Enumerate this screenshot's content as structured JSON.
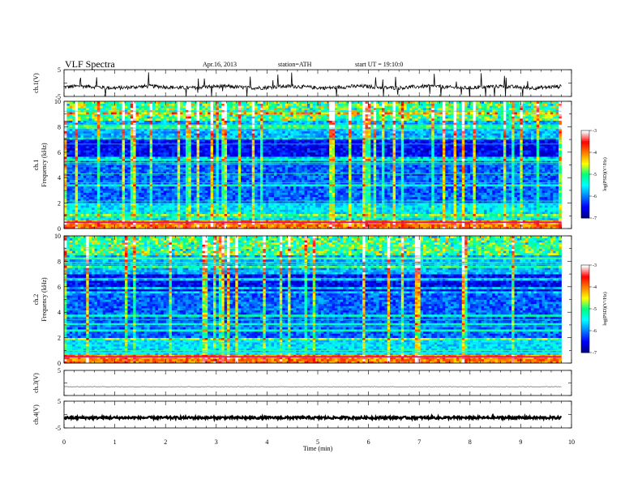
{
  "header": {
    "title": "VLF  Spectra",
    "date": "Apr.16, 2013",
    "station": "station=ATH",
    "start": "start  UT =    19:10:0"
  },
  "chart_data": [
    {
      "type": "line",
      "title": "",
      "xlabel": "",
      "ylabel": "ch.1(V)",
      "xlim": [
        0,
        10
      ],
      "ylim": [
        -5,
        5
      ],
      "y_ticks": [
        "5",
        "-5"
      ],
      "x_data_end_min": 9.8,
      "baseline_v": -1.5,
      "note_series": "noisy waveform, spikes to approx +4 and -5"
    },
    {
      "type": "heatmap",
      "title": "",
      "xlabel": "",
      "ylabel_lines": [
        "ch.1",
        "Frequency (kHz)"
      ],
      "xlim": [
        0,
        10
      ],
      "ylim": [
        0,
        10
      ],
      "y_ticks": [
        "0",
        "2",
        "4",
        "6",
        "8",
        "10"
      ],
      "colorbar": {
        "label": "log(PSD)(V²/Hz)",
        "range": [
          -7,
          -3
        ],
        "ticks": [
          "-3",
          "-4",
          "-5",
          "-6",
          "-7"
        ],
        "colors": [
          "#00008b",
          "#0000ff",
          "#0080ff",
          "#00ffff",
          "#00ff80",
          "#ffff00",
          "#ff8000",
          "#ff0000",
          "#ffffff"
        ]
      }
    },
    {
      "type": "heatmap",
      "title": "",
      "xlabel": "",
      "ylabel_lines": [
        "ch.2",
        "Frequency (kHz)"
      ],
      "xlim": [
        0,
        10
      ],
      "ylim": [
        0,
        10
      ],
      "y_ticks": [
        "0",
        "2",
        "4",
        "6",
        "8",
        "10"
      ],
      "colorbar": {
        "label": "log(PSD)(V²/Hz)",
        "range": [
          -7,
          -3
        ],
        "ticks": [
          "-3",
          "-4",
          "-5",
          "-6",
          "-7"
        ],
        "colors": [
          "#00008b",
          "#0000ff",
          "#0080ff",
          "#00ffff",
          "#00ff80",
          "#ffff00",
          "#ff8000",
          "#ff0000",
          "#ffffff"
        ]
      }
    },
    {
      "type": "line",
      "title": "",
      "xlabel": "",
      "ylabel": "ch.3(V)",
      "xlim": [
        0,
        10
      ],
      "ylim": [
        -5,
        5
      ],
      "y_ticks": [
        "5"
      ],
      "x_data_end_min": 9.8,
      "baseline_v": -1.5
    },
    {
      "type": "line",
      "title": "",
      "xlabel": "Time  (min)",
      "ylabel": "ch.4(V)",
      "xlim": [
        0,
        10
      ],
      "ylim": [
        -5,
        5
      ],
      "y_ticks": [
        "5",
        "-5"
      ],
      "x_ticks": [
        "0",
        "1",
        "2",
        "3",
        "4",
        "5",
        "6",
        "7",
        "8",
        "9",
        "10"
      ],
      "x_data_end_min": 9.8,
      "baseline_v": -1.2
    }
  ]
}
